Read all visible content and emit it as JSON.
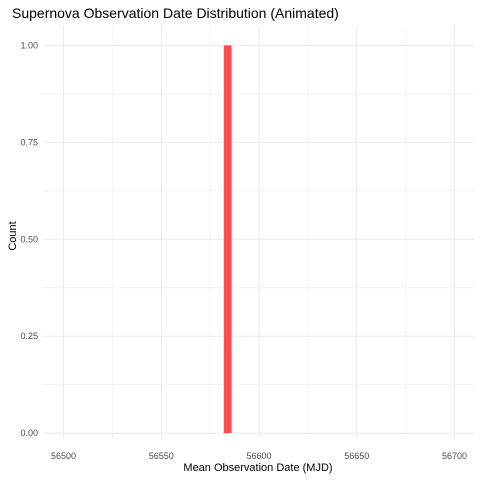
{
  "chart_data": {
    "type": "bar",
    "title": "Supernova Observation Date Distribution (Animated)",
    "xlabel": "Mean Observation Date (MJD)",
    "ylabel": "Count",
    "xlim": [
      56490,
      56710
    ],
    "ylim": [
      -0.0125,
      1.05
    ],
    "x_ticks": [
      56500,
      56550,
      56600,
      56650,
      56700
    ],
    "x_tick_labels": [
      "56500",
      "56550",
      "56600",
      "56650",
      "56700"
    ],
    "y_ticks": [
      0,
      0.25,
      0.5,
      0.75,
      1
    ],
    "y_tick_labels": [
      "0.00",
      "0.25",
      "0.50",
      "0.75",
      "1.00"
    ],
    "x_minor_ticks": [
      56525,
      56575,
      56625,
      56675
    ],
    "y_minor_ticks": [
      0.125,
      0.375,
      0.625,
      0.875
    ],
    "grid": true,
    "series": [
      {
        "bars": [
          {
            "x_start": 56582,
            "x_end": 56586,
            "value": 1
          }
        ]
      }
    ],
    "colors": {
      "bar": "#ff4d4d",
      "grid_major": "#ebebeb",
      "grid_minor": "#f4f4f4",
      "tick_text": "#4d4d4d",
      "title_text": "#000000"
    }
  }
}
